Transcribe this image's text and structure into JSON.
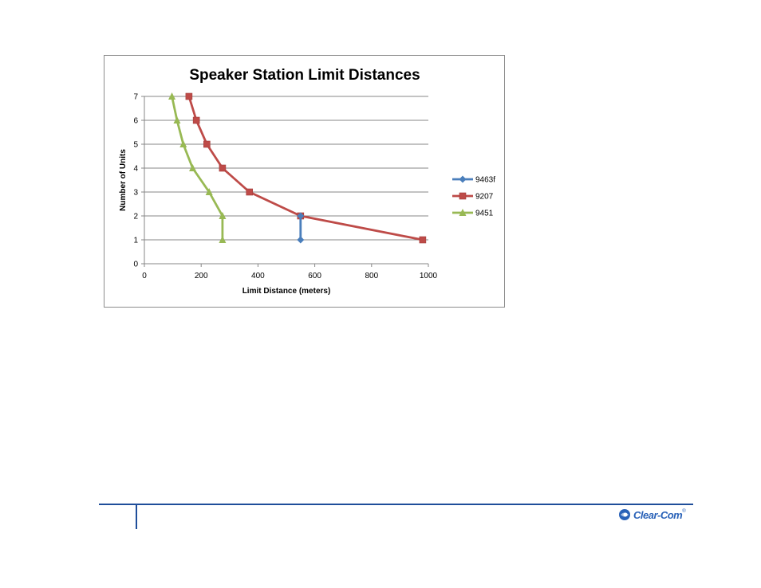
{
  "chart_data": {
    "type": "line",
    "title": "Speaker Station Limit Distances",
    "xlabel": "Limit Distance (meters)",
    "ylabel": "Number of Units",
    "xlim": [
      0,
      1000
    ],
    "ylim": [
      0,
      7
    ],
    "xticks": [
      0,
      200,
      400,
      600,
      800,
      1000
    ],
    "yticks": [
      0,
      1,
      2,
      3,
      4,
      5,
      6,
      7
    ],
    "grid": "horizontal",
    "legend_position": "right",
    "series": [
      {
        "name": "9463f",
        "color": "#4a7ebb",
        "marker": "diamond",
        "points": [
          [
            550,
            1
          ],
          [
            550,
            2
          ]
        ]
      },
      {
        "name": "9207",
        "color": "#be4b48",
        "marker": "square",
        "points": [
          [
            980,
            1
          ],
          [
            550,
            2
          ],
          [
            370,
            3
          ],
          [
            275,
            4
          ],
          [
            220,
            5
          ],
          [
            183,
            6
          ],
          [
            157,
            7
          ]
        ]
      },
      {
        "name": "9451",
        "color": "#98b954",
        "marker": "triangle",
        "points": [
          [
            275,
            1
          ],
          [
            275,
            2
          ],
          [
            228,
            3
          ],
          [
            170,
            4
          ],
          [
            137,
            5
          ],
          [
            115,
            6
          ],
          [
            97,
            7
          ]
        ]
      }
    ]
  },
  "footer": {
    "logo_text": "Clear-Com",
    "logo_mark": "®"
  }
}
